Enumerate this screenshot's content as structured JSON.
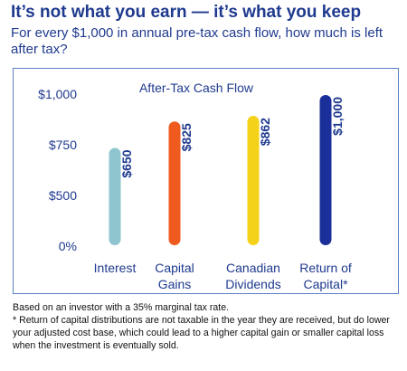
{
  "header": {
    "title": "It’s not what you earn — it’s what you keep",
    "subtitle": "For every $1,000 in annual pre-tax cash flow, how much is left after tax?"
  },
  "chart_data": {
    "type": "bar",
    "title": "After-Tax Cash Flow",
    "xlabel": "",
    "ylabel": "",
    "ylim": [
      0,
      1000
    ],
    "y_ticks": [
      "$1,000",
      "$750",
      "$500",
      "0%"
    ],
    "y_tick_values": [
      1000,
      750,
      500,
      0
    ],
    "categories": [
      [
        "Interest"
      ],
      [
        "Capital",
        "Gains"
      ],
      [
        "Canadian",
        "Dividends"
      ],
      [
        "Return of",
        "Capital*"
      ]
    ],
    "values": [
      650,
      825,
      862,
      1000
    ],
    "value_labels": [
      "$650",
      "$825",
      "$862",
      "$1,000"
    ],
    "colors": [
      "#8ec5cf",
      "#ef5b1f",
      "#f5d21a",
      "#1a2f9a"
    ],
    "grid": false,
    "legend": "none"
  },
  "footnote": {
    "line1": "Based on an investor with a 35% marginal tax rate.",
    "line2": "* Return of capital distributions are not taxable in the year they are received, but do lower your adjusted cost base, which could lead to a higher capital gain or smaller capital loss when the investment is eventually sold."
  },
  "theme": {
    "accent": "#1f3a8f",
    "border": "#5a7fc4"
  }
}
